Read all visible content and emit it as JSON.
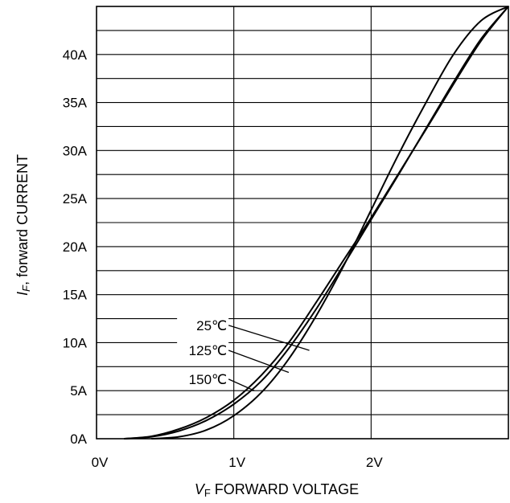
{
  "chart_data": {
    "type": "line",
    "title": "",
    "xlabel": {
      "main": "V",
      "sub": "F",
      "rest": " FORWARD VOLTAGE"
    },
    "ylabel": {
      "main": "I",
      "sub": "F",
      "rest": ", forward CURRENT"
    },
    "xlim": [
      0,
      3.0
    ],
    "ylim": [
      0,
      45
    ],
    "x_ticks": [
      {
        "value": 0,
        "label": "0V"
      },
      {
        "value": 1,
        "label": "1V"
      },
      {
        "value": 2,
        "label": "2V"
      }
    ],
    "y_ticks": [
      {
        "value": 0,
        "label": "0A"
      },
      {
        "value": 5,
        "label": "5A"
      },
      {
        "value": 10,
        "label": "10A"
      },
      {
        "value": 15,
        "label": "15A"
      },
      {
        "value": 20,
        "label": "20A"
      },
      {
        "value": 25,
        "label": "25A"
      },
      {
        "value": 30,
        "label": "30A"
      },
      {
        "value": 35,
        "label": "35A"
      },
      {
        "value": 40,
        "label": "40A"
      }
    ],
    "grid": true,
    "x_grid": [
      1,
      2
    ],
    "y_grid": [
      2.5,
      5,
      7.5,
      10,
      12.5,
      15,
      17.5,
      20,
      22.5,
      25,
      27.5,
      30,
      32.5,
      35,
      37.5,
      40,
      42.5
    ],
    "series": [
      {
        "name": "25℃",
        "x": [
          0.4,
          0.6,
          0.8,
          1.0,
          1.2,
          1.4,
          1.6,
          1.8,
          2.0,
          2.2,
          2.4,
          2.6,
          2.8,
          3.0
        ],
        "y": [
          0.0,
          0.2,
          0.9,
          2.4,
          4.8,
          8.3,
          12.8,
          18.0,
          23.8,
          29.6,
          35.0,
          40.0,
          43.5,
          45.0
        ]
      },
      {
        "name": "125℃",
        "x": [
          0.2,
          0.4,
          0.6,
          0.8,
          1.0,
          1.2,
          1.4,
          1.6,
          1.8,
          2.0,
          2.2,
          2.4,
          2.6,
          2.8,
          3.0
        ],
        "y": [
          0.0,
          0.2,
          0.8,
          1.9,
          3.6,
          6.0,
          9.4,
          13.5,
          18.1,
          22.8,
          27.5,
          32.3,
          37.1,
          41.6,
          45.0
        ]
      },
      {
        "name": "150℃",
        "x": [
          0.2,
          0.4,
          0.6,
          0.8,
          1.0,
          1.2,
          1.4,
          1.6,
          1.8,
          2.0,
          2.2,
          2.4,
          2.6,
          2.8,
          3.0
        ],
        "y": [
          0.0,
          0.25,
          1.0,
          2.2,
          4.0,
          6.6,
          10.0,
          14.2,
          18.6,
          23.0,
          27.6,
          32.2,
          36.9,
          41.4,
          45.0
        ]
      }
    ],
    "annotations": [
      {
        "text": "25℃",
        "series": 0,
        "label_x": 0.95,
        "label_y": 11.8,
        "anchor_x": 1.55,
        "anchor_y": 9.2
      },
      {
        "text": "125℃",
        "series": 1,
        "label_x": 0.95,
        "label_y": 9.2,
        "anchor_x": 1.4,
        "anchor_y": 6.9
      },
      {
        "text": "150℃",
        "series": 2,
        "label_x": 0.95,
        "label_y": 6.2,
        "anchor_x": 1.15,
        "anchor_y": 5.0
      }
    ]
  }
}
